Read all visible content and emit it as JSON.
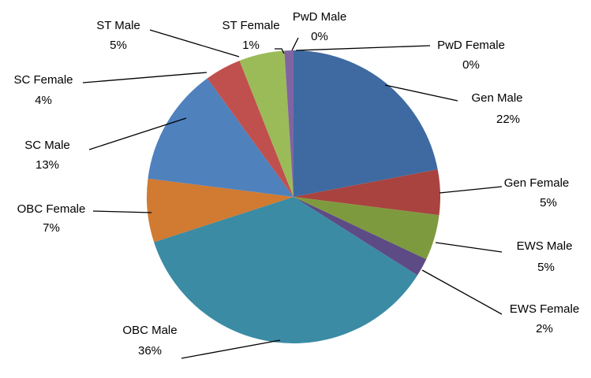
{
  "chart_data": {
    "type": "pie",
    "categories": [
      "Gen Male",
      "Gen Female",
      "EWS Male",
      "EWS Female",
      "OBC Male",
      "OBC Female",
      "SC Male",
      "SC Female",
      "ST Male",
      "ST Female",
      "PwD Male",
      "PwD Female"
    ],
    "values": [
      22,
      5,
      5,
      2,
      36,
      7,
      13,
      4,
      5,
      1,
      0,
      0
    ],
    "value_labels": [
      "22%",
      "5%",
      "5%",
      "2%",
      "36%",
      "7%",
      "13%",
      "4%",
      "5%",
      "1%",
      "0%",
      "0%"
    ],
    "colors": [
      "#3e6aa1",
      "#a9433f",
      "#7e9a3e",
      "#5d4b86",
      "#3b8ba4",
      "#d07a32",
      "#4f81bd",
      "#c0504d",
      "#9bbb59",
      "#8064a2",
      "#4bacc6",
      "#f79646"
    ]
  }
}
